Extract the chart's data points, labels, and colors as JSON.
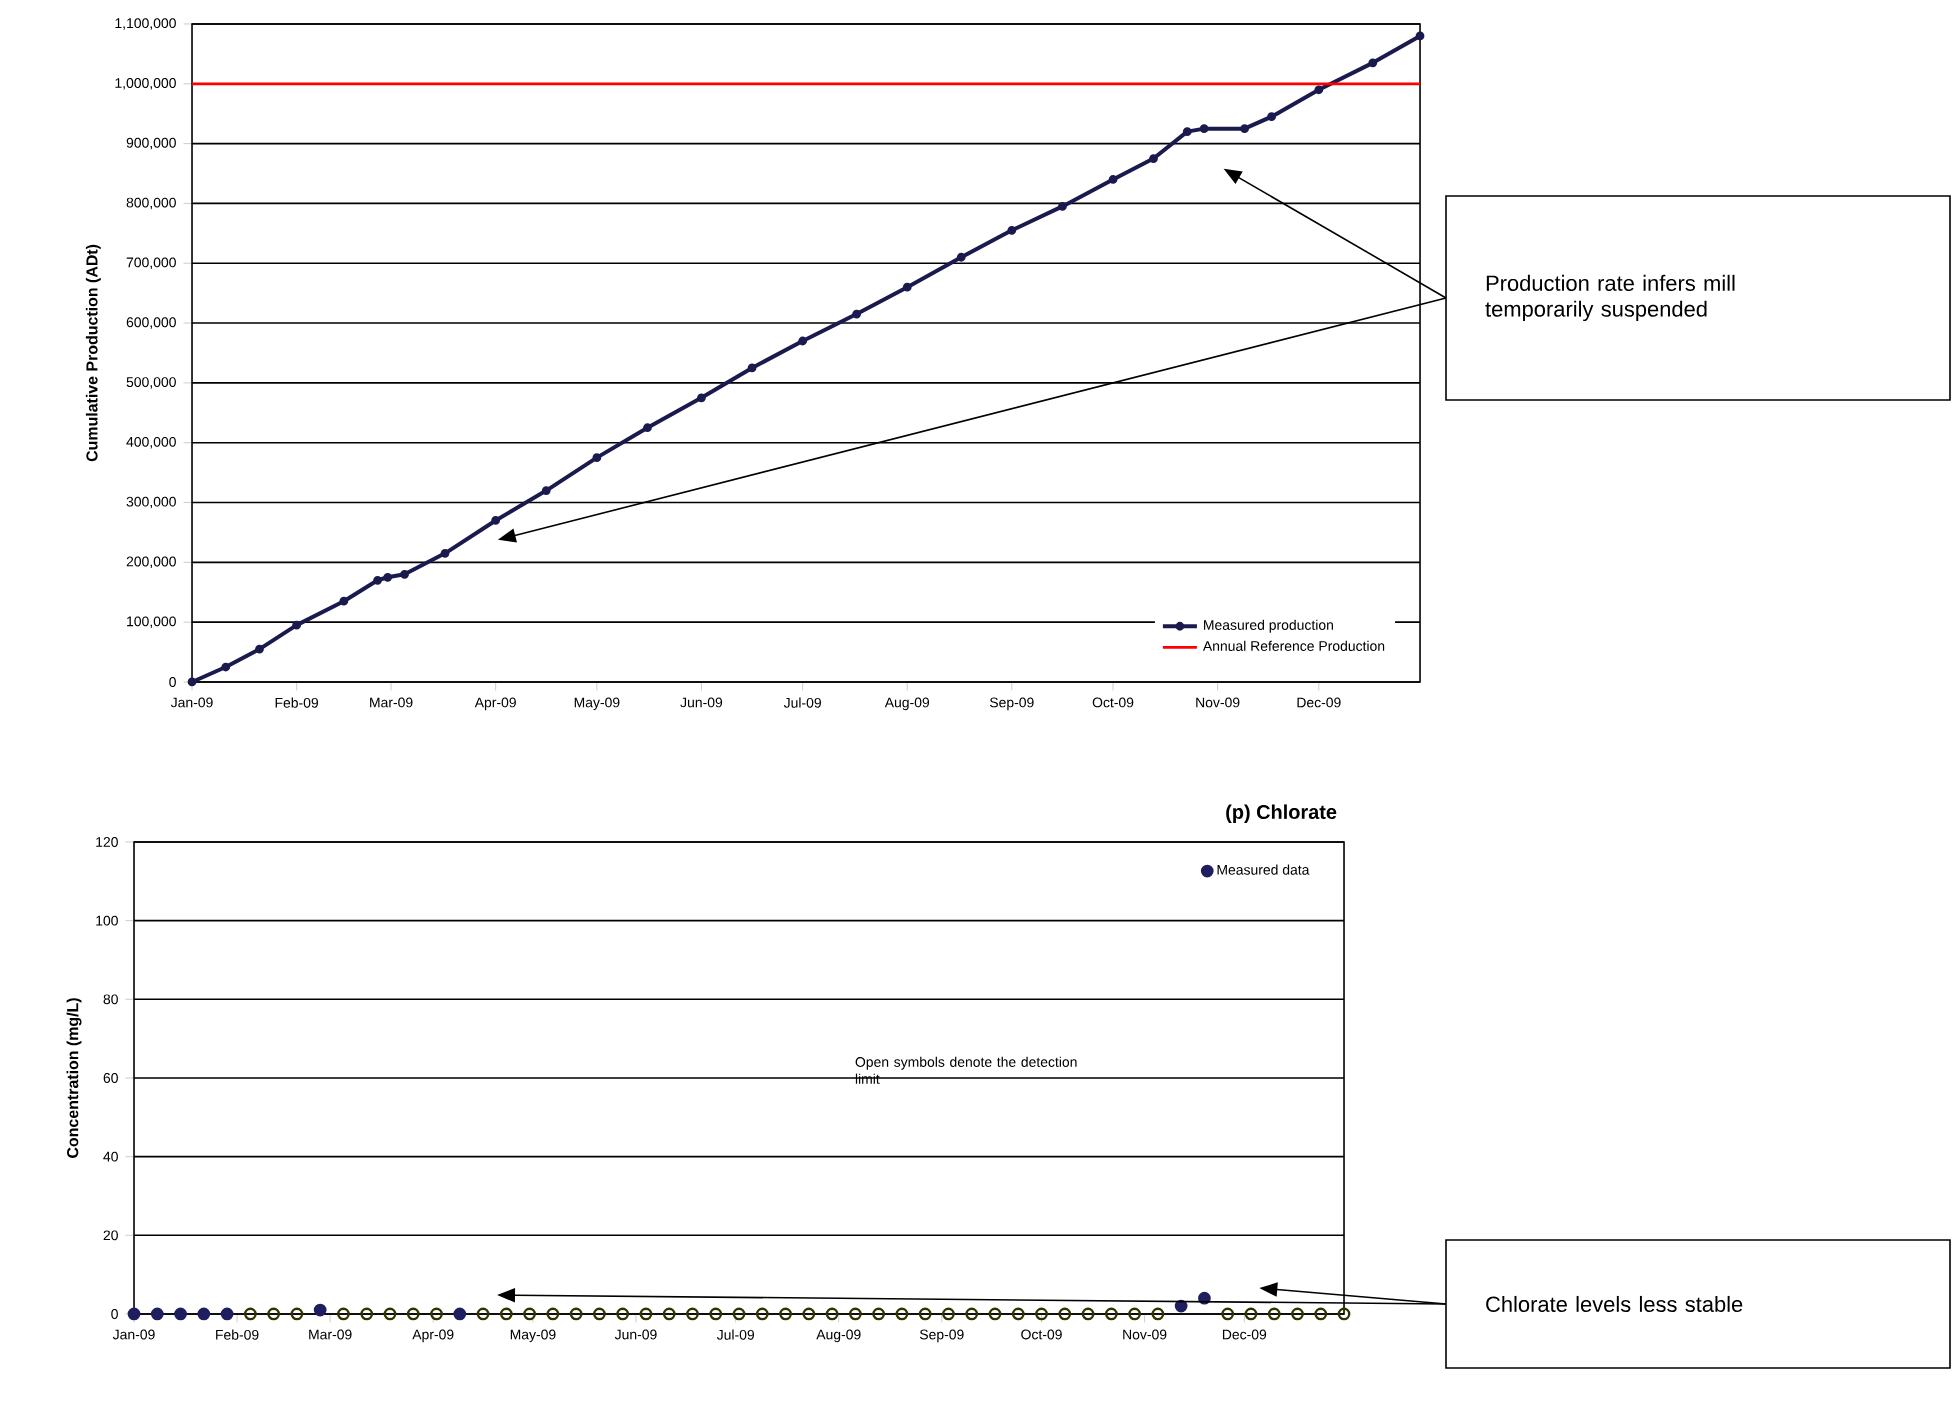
{
  "chart_data": [
    {
      "type": "line",
      "ylabel": "Cumulative Production (ADt)",
      "xlim": [
        "2009-01-01",
        "2009-12-31"
      ],
      "ylim": [
        0,
        1100000
      ],
      "xticks": [
        {
          "value": "2009-01-01",
          "label": "Jan-09"
        },
        {
          "value": "2009-02-01",
          "label": "Feb-09"
        },
        {
          "value": "2009-03-01",
          "label": "Mar-09"
        },
        {
          "value": "2009-04-01",
          "label": "Apr-09"
        },
        {
          "value": "2009-05-01",
          "label": "May-09"
        },
        {
          "value": "2009-06-01",
          "label": "Jun-09"
        },
        {
          "value": "2009-07-01",
          "label": "Jul-09"
        },
        {
          "value": "2009-08-01",
          "label": "Aug-09"
        },
        {
          "value": "2009-09-01",
          "label": "Sep-09"
        },
        {
          "value": "2009-10-01",
          "label": "Oct-09"
        },
        {
          "value": "2009-11-01",
          "label": "Nov-09"
        },
        {
          "value": "2009-12-01",
          "label": "Dec-09"
        }
      ],
      "yticks": [
        0,
        {
          "value": 100000,
          "label": "100,000"
        },
        {
          "value": 200000,
          "label": "200,000"
        },
        {
          "value": 300000,
          "label": "300,000"
        },
        {
          "value": 400000,
          "label": "400,000"
        },
        {
          "value": 500000,
          "label": "500,000"
        },
        {
          "value": 600000,
          "label": "600,000"
        },
        {
          "value": 700000,
          "label": "700,000"
        },
        {
          "value": 800000,
          "label": "800,000"
        },
        {
          "value": 900000,
          "label": "900,000"
        },
        {
          "value": 1000000,
          "label": "1,000,000"
        },
        {
          "value": 1100000,
          "label": "1,100,000"
        }
      ],
      "series": [
        {
          "name": "Measured production",
          "color": "#1a1a4e",
          "x": [
            "2009-01-01",
            "2009-01-11",
            "2009-01-21",
            "2009-02-01",
            "2009-02-15",
            "2009-02-25",
            "2009-02-28",
            "2009-03-05",
            "2009-03-17",
            "2009-04-01",
            "2009-04-16",
            "2009-05-01",
            "2009-05-16",
            "2009-06-01",
            "2009-06-16",
            "2009-07-01",
            "2009-07-17",
            "2009-08-01",
            "2009-08-17",
            "2009-09-01",
            "2009-09-16",
            "2009-10-01",
            "2009-10-13",
            "2009-10-23",
            "2009-10-28",
            "2009-11-09",
            "2009-11-17",
            "2009-12-01",
            "2009-12-17",
            "2009-12-31"
          ],
          "values": [
            0,
            25000,
            55000,
            95000,
            135000,
            170000,
            175000,
            180000,
            215000,
            270000,
            320000,
            375000,
            425000,
            475000,
            525000,
            570000,
            615000,
            660000,
            710000,
            755000,
            795000,
            840000,
            875000,
            920000,
            925000,
            925000,
            945000,
            990000,
            1035000,
            1080000
          ]
        }
      ],
      "ref_lines": [
        {
          "axis": "y",
          "value": 1000000,
          "label": "Annual Reference Production",
          "color": "#ff0000"
        }
      ],
      "grid": "y",
      "legend": "bottom right",
      "marker": "circle",
      "line_style": "solid",
      "annotations": [
        "Production rate infers mill temporarily suspended"
      ]
    },
    {
      "type": "scatter",
      "title": "(p) Chlorate",
      "ylabel": "Concentration (mg/L)",
      "xlim": [
        "2009-01-01",
        "2009-12-31"
      ],
      "ylim": [
        0,
        120
      ],
      "xticks": [
        {
          "value": "2009-01-01",
          "label": "Jan-09"
        },
        {
          "value": "2009-02-01",
          "label": "Feb-09"
        },
        {
          "value": "2009-03-01",
          "label": "Mar-09"
        },
        {
          "value": "2009-04-01",
          "label": "Apr-09"
        },
        {
          "value": "2009-05-01",
          "label": "May-09"
        },
        {
          "value": "2009-06-01",
          "label": "Jun-09"
        },
        {
          "value": "2009-07-01",
          "label": "Jul-09"
        },
        {
          "value": "2009-08-01",
          "label": "Aug-09"
        },
        {
          "value": "2009-09-01",
          "label": "Sep-09"
        },
        {
          "value": "2009-10-01",
          "label": "Oct-09"
        },
        {
          "value": "2009-11-01",
          "label": "Nov-09"
        },
        {
          "value": "2009-12-01",
          "label": "Dec-09"
        }
      ],
      "yticks": [
        0,
        20,
        40,
        60,
        80,
        100,
        120
      ],
      "series": [
        {
          "name": "Measured data",
          "color": "#1f1f5f",
          "x": [
            "2009-01-01",
            "2009-01-08",
            "2009-01-15",
            "2009-01-22",
            "2009-01-29",
            "2009-02-26",
            "2009-04-09",
            "2009-11-12",
            "2009-11-19"
          ],
          "values": [
            0,
            0,
            0,
            0,
            0,
            1,
            0,
            2,
            4
          ]
        },
        {
          "color": "#333300",
          "x": [
            "2009-02-05",
            "2009-02-12",
            "2009-02-19",
            "2009-03-05",
            "2009-03-12",
            "2009-03-19",
            "2009-03-26",
            "2009-04-02",
            "2009-04-16",
            "2009-04-23",
            "2009-04-30",
            "2009-05-07",
            "2009-05-14",
            "2009-05-21",
            "2009-05-28",
            "2009-06-04",
            "2009-06-11",
            "2009-06-18",
            "2009-06-25",
            "2009-07-02",
            "2009-07-09",
            "2009-07-16",
            "2009-07-23",
            "2009-07-30",
            "2009-08-06",
            "2009-08-13",
            "2009-08-20",
            "2009-08-27",
            "2009-09-03",
            "2009-09-10",
            "2009-09-17",
            "2009-09-24",
            "2009-10-01",
            "2009-10-08",
            "2009-10-15",
            "2009-10-22",
            "2009-10-29",
            "2009-11-05",
            "2009-11-26",
            "2009-12-03",
            "2009-12-10",
            "2009-12-17",
            "2009-12-24",
            "2009-12-31"
          ],
          "values": [
            0,
            0,
            0,
            0,
            0,
            0,
            0,
            0,
            0,
            0,
            0,
            0,
            0,
            0,
            0,
            0,
            0,
            0,
            0,
            0,
            0,
            0,
            0,
            0,
            0,
            0,
            0,
            0,
            0,
            0,
            0,
            0,
            0,
            0,
            0,
            0,
            0,
            0,
            0,
            0,
            0,
            0,
            0,
            0
          ]
        }
      ],
      "grid": "y",
      "legend": "top right",
      "marker": "circle",
      "annotations": [
        "Open symbols denote the detection limit",
        "Chlorate levels less stable"
      ]
    }
  ]
}
